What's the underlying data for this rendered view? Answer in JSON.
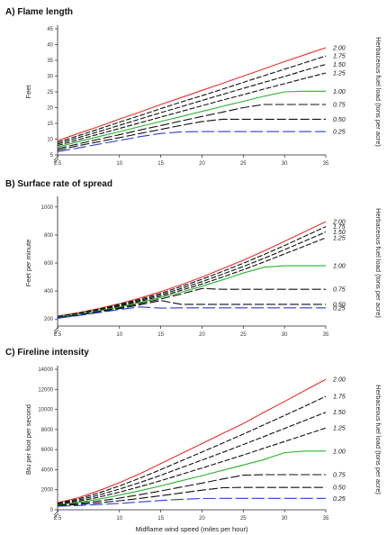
{
  "chart_data": [
    {
      "type": "line",
      "title": "A) Flame length",
      "ylabel": "Feet",
      "right_label": "Herbaceous fuel load (tons per acre)",
      "xlabel": "",
      "x_ticks": [
        "2.5",
        "10",
        "15",
        "20",
        "25",
        "30",
        "35"
      ],
      "y_ticks": [
        "5",
        "10",
        "15",
        "20",
        "25",
        "30",
        "35",
        "40",
        "45"
      ],
      "ylim": [
        5,
        45
      ],
      "xlim": [
        2.5,
        35
      ],
      "grid": false,
      "x": [
        2.5,
        5,
        7.5,
        10,
        12.5,
        15,
        17.5,
        20,
        22.5,
        25,
        27.5,
        30,
        32.5,
        35
      ],
      "series": [
        {
          "name": "2.00",
          "color": "#e8312a",
          "values": [
            9.5,
            11.8,
            14.0,
            16.4,
            18.6,
            21.0,
            23.2,
            25.5,
            27.7,
            30.0,
            32.3,
            34.6,
            36.8,
            39.0
          ]
        },
        {
          "name": "1.75",
          "color": "#111111",
          "values": [
            9.0,
            11.1,
            13.2,
            15.4,
            17.5,
            19.7,
            21.8,
            23.8,
            25.9,
            28.0,
            30.1,
            32.2,
            34.3,
            36.4
          ]
        },
        {
          "name": "1.50",
          "color": "#111111",
          "values": [
            8.5,
            10.5,
            12.4,
            14.4,
            16.4,
            18.4,
            20.3,
            22.3,
            24.2,
            26.1,
            28.0,
            29.9,
            31.9,
            33.7
          ]
        },
        {
          "name": "1.25",
          "color": "#111111",
          "values": [
            8.0,
            9.8,
            11.6,
            13.4,
            15.2,
            17.0,
            18.8,
            20.6,
            22.4,
            24.1,
            25.9,
            27.6,
            29.3,
            31.0
          ]
        },
        {
          "name": "1.00",
          "color": "#2bb32b",
          "values": [
            7.5,
            9.2,
            10.8,
            12.4,
            14.0,
            15.6,
            17.2,
            18.8,
            20.4,
            22.0,
            23.6,
            25.0,
            25.2,
            25.2
          ]
        },
        {
          "name": "0.75",
          "color": "#111111",
          "values": [
            7.0,
            8.5,
            10.0,
            11.4,
            12.9,
            14.3,
            15.8,
            17.2,
            18.6,
            20.0,
            21.0,
            21.0,
            21.0,
            21.0
          ]
        },
        {
          "name": "0.50",
          "color": "#111111",
          "values": [
            6.5,
            7.9,
            9.2,
            10.5,
            11.8,
            13.1,
            14.4,
            15.6,
            16.3,
            16.3,
            16.3,
            16.3,
            16.3,
            16.3
          ]
        },
        {
          "name": "0.25",
          "color": "#2a3fd6",
          "values": [
            6.0,
            7.2,
            8.4,
            9.6,
            10.8,
            11.8,
            12.3,
            12.4,
            12.4,
            12.4,
            12.4,
            12.4,
            12.4,
            12.4
          ]
        }
      ]
    },
    {
      "type": "line",
      "title": "B) Surface rate of spread",
      "ylabel": "Feet per minute",
      "right_label": "Herbaceous fuel load (tons per acre)",
      "xlabel": "",
      "x_ticks": [
        "2.5",
        "10",
        "15",
        "20",
        "25",
        "30",
        "35"
      ],
      "y_ticks": [
        "200",
        "400",
        "600",
        "800",
        "1000"
      ],
      "ylim": [
        150,
        1050
      ],
      "xlim": [
        2.5,
        35
      ],
      "grid": false,
      "x": [
        2.5,
        5,
        7.5,
        10,
        12.5,
        15,
        17.5,
        20,
        22.5,
        25,
        27.5,
        30,
        32.5,
        35
      ],
      "series": [
        {
          "name": "2.00",
          "color": "#e8312a",
          "values": [
            220,
            245,
            275,
            310,
            350,
            395,
            445,
            500,
            560,
            620,
            685,
            755,
            825,
            895
          ]
        },
        {
          "name": "1.75",
          "color": "#111111",
          "values": [
            218,
            242,
            270,
            304,
            342,
            384,
            432,
            484,
            540,
            598,
            660,
            725,
            792,
            860
          ]
        },
        {
          "name": "1.50",
          "color": "#111111",
          "values": [
            216,
            239,
            266,
            298,
            334,
            374,
            418,
            467,
            520,
            575,
            633,
            695,
            758,
            822
          ]
        },
        {
          "name": "1.25",
          "color": "#111111",
          "values": [
            214,
            236,
            262,
            292,
            326,
            363,
            405,
            450,
            500,
            552,
            607,
            665,
            722,
            780
          ]
        },
        {
          "name": "1.00",
          "color": "#2bb32b",
          "values": [
            212,
            233,
            258,
            286,
            318,
            353,
            392,
            434,
            480,
            528,
            570,
            580,
            580,
            580
          ]
        },
        {
          "name": "0.75",
          "color": "#111111",
          "values": [
            210,
            230,
            254,
            280,
            310,
            343,
            379,
            418,
            412,
            412,
            412,
            412,
            412,
            412
          ]
        },
        {
          "name": "0.50",
          "color": "#111111",
          "values": [
            208,
            227,
            250,
            274,
            302,
            332,
            305,
            305,
            305,
            305,
            305,
            305,
            305,
            305
          ]
        },
        {
          "name": "0.25",
          "color": "#2a3fd6",
          "values": [
            206,
            224,
            246,
            268,
            286,
            278,
            280,
            280,
            280,
            280,
            280,
            280,
            280,
            280
          ]
        }
      ]
    },
    {
      "type": "line",
      "title": "C) Fireline intensity",
      "ylabel": "Btu per foot per second",
      "right_label": "Herbaceous fuel load (tons per acre)",
      "xlabel": "Midflame wind speed (miles per hour)",
      "x_ticks": [
        "2.5",
        "10",
        "15",
        "20",
        "25",
        "30",
        "35"
      ],
      "y_ticks": [
        "0",
        "2000",
        "4000",
        "6000",
        "8000",
        "10000",
        "12000",
        "14000"
      ],
      "ylim": [
        0,
        14000
      ],
      "xlim": [
        2.5,
        35
      ],
      "grid": false,
      "x": [
        2.5,
        5,
        7.5,
        10,
        12.5,
        15,
        17.5,
        20,
        22.5,
        25,
        27.5,
        30,
        32.5,
        35
      ],
      "series": [
        {
          "name": "2.00",
          "color": "#e8312a",
          "values": [
            700,
            1200,
            1900,
            2700,
            3600,
            4600,
            5600,
            6600,
            7600,
            8600,
            9700,
            10800,
            11900,
            13000
          ]
        },
        {
          "name": "1.75",
          "color": "#111111",
          "values": [
            650,
            1080,
            1680,
            2380,
            3160,
            4000,
            4880,
            5750,
            6640,
            7540,
            8460,
            9400,
            10340,
            11300
          ]
        },
        {
          "name": "1.50",
          "color": "#111111",
          "values": [
            600,
            960,
            1460,
            2060,
            2720,
            3440,
            4200,
            4950,
            5720,
            6500,
            7300,
            8100,
            8910,
            9720
          ]
        },
        {
          "name": "1.25",
          "color": "#111111",
          "values": [
            550,
            840,
            1260,
            1760,
            2310,
            2900,
            3530,
            4160,
            4810,
            5460,
            6130,
            6800,
            7480,
            8150
          ]
        },
        {
          "name": "1.00",
          "color": "#2bb32b",
          "values": [
            500,
            730,
            1060,
            1460,
            1900,
            2380,
            2890,
            3400,
            3930,
            4460,
            5000,
            5700,
            5850,
            5850
          ]
        },
        {
          "name": "0.75",
          "color": "#111111",
          "values": [
            450,
            620,
            870,
            1170,
            1510,
            1880,
            2270,
            2660,
            3070,
            3450,
            3500,
            3500,
            3500,
            3500
          ]
        },
        {
          "name": "0.50",
          "color": "#111111",
          "values": [
            400,
            520,
            690,
            900,
            1140,
            1400,
            1680,
            1960,
            2200,
            2230,
            2230,
            2230,
            2230,
            2230
          ]
        },
        {
          "name": "0.25",
          "color": "#2a3fd6",
          "values": [
            350,
            420,
            520,
            640,
            780,
            920,
            1040,
            1120,
            1140,
            1140,
            1140,
            1140,
            1140,
            1140
          ]
        }
      ]
    }
  ]
}
